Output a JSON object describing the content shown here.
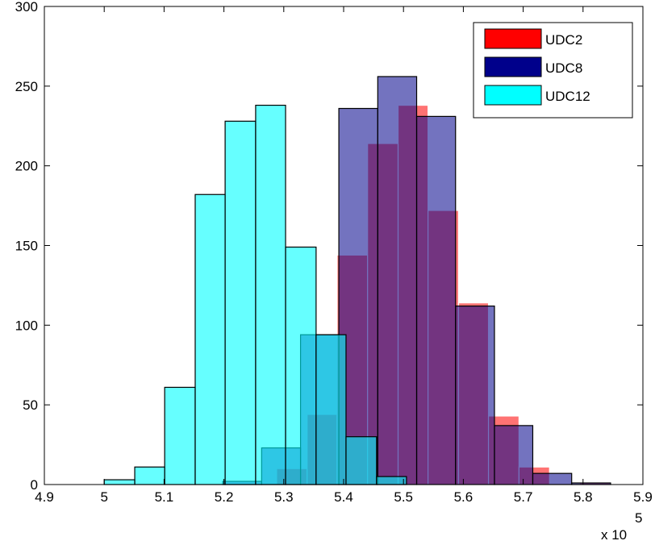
{
  "chart_data": {
    "type": "histogram",
    "x_tick_labels": [
      "4.9",
      "5",
      "5.1",
      "5.2",
      "5.3",
      "5.4",
      "5.5",
      "5.6",
      "5.7",
      "5.8",
      "5.9"
    ],
    "y_tick_labels": [
      "0",
      "50",
      "100",
      "150",
      "200",
      "250",
      "300"
    ],
    "x_multiplier_label": "x 10",
    "x_multiplier_exponent": "5",
    "xlim": [
      490000,
      590000
    ],
    "ylim": [
      0,
      300
    ],
    "x_ticks": [
      490000,
      500000,
      510000,
      520000,
      530000,
      540000,
      550000,
      560000,
      570000,
      580000,
      590000
    ],
    "y_ticks": [
      0,
      50,
      100,
      150,
      200,
      250,
      300
    ],
    "legend_position": "top-right",
    "series": [
      {
        "name": "UDC2",
        "color": "#ff0000",
        "alpha": 0.55,
        "edge": "#ffffff",
        "bins": [
          [
            528800,
            533900,
            10
          ],
          [
            533900,
            538900,
            44
          ],
          [
            538900,
            544000,
            144
          ],
          [
            544000,
            549100,
            214
          ],
          [
            549100,
            554100,
            238
          ],
          [
            554100,
            559200,
            172
          ],
          [
            559200,
            564200,
            114
          ],
          [
            564200,
            569300,
            43
          ],
          [
            569300,
            574400,
            11
          ],
          [
            574400,
            579400,
            0
          ],
          [
            579400,
            584500,
            1
          ]
        ]
      },
      {
        "name": "UDC8",
        "color": "#00008b",
        "alpha": 0.55,
        "edge": "#000000",
        "bins": [
          [
            519800,
            526300,
            2
          ],
          [
            526300,
            532800,
            23
          ],
          [
            532800,
            539200,
            94
          ],
          [
            539200,
            545700,
            236
          ],
          [
            545700,
            552200,
            256
          ],
          [
            552200,
            558700,
            231
          ],
          [
            558700,
            565200,
            112
          ],
          [
            565200,
            571600,
            37
          ],
          [
            571600,
            578100,
            7
          ],
          [
            578100,
            584600,
            1
          ]
        ]
      },
      {
        "name": "UDC12",
        "color": "#00ffff",
        "alpha": 0.6,
        "edge": "#000000",
        "bins": [
          [
            500000,
            505100,
            3
          ],
          [
            505100,
            510100,
            11
          ],
          [
            510100,
            515200,
            61
          ],
          [
            515200,
            520200,
            182
          ],
          [
            520200,
            525300,
            228
          ],
          [
            525300,
            530300,
            238
          ],
          [
            530300,
            535400,
            149
          ],
          [
            535400,
            540400,
            94
          ],
          [
            540400,
            545500,
            30
          ],
          [
            545500,
            550500,
            5
          ]
        ]
      }
    ],
    "legend": [
      "UDC2",
      "UDC8",
      "UDC12"
    ]
  }
}
